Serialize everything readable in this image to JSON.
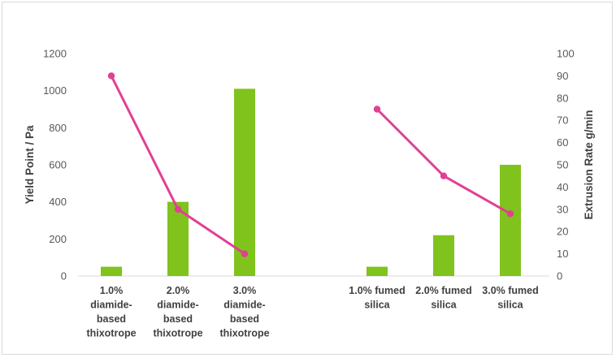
{
  "chart_data": {
    "type": "bar",
    "combo": "bar-with-line-secondary-axis",
    "categories": [
      [
        "1.0%",
        "diamide-",
        "based",
        "thixotrope"
      ],
      [
        "2.0%",
        "diamide-",
        "based",
        "thixotrope"
      ],
      [
        "3.0%",
        "diamide-",
        "based",
        "thixotrope"
      ],
      [
        "1.0% fumed",
        "silica"
      ],
      [
        "2.0% fumed",
        "silica"
      ],
      [
        "3.0% fumed",
        "silica"
      ]
    ],
    "groups": [
      [
        0,
        1,
        2
      ],
      [
        3,
        4,
        5
      ]
    ],
    "series": [
      {
        "type": "bar",
        "axis": "left",
        "values": [
          50,
          400,
          1010,
          50,
          220,
          600
        ],
        "color": "#7fc31c"
      },
      {
        "type": "line",
        "axis": "right",
        "values": [
          90,
          30,
          10,
          75,
          45,
          28
        ],
        "color": "#e23f95"
      }
    ],
    "y_left": {
      "label": "Yield Point / Pa",
      "min": 0,
      "max": 1200,
      "ticks": [
        "0",
        "200",
        "400",
        "600",
        "800",
        "1000",
        "1200"
      ]
    },
    "y_right": {
      "label": "Extrusion Rate g/min",
      "min": 0,
      "max": 100,
      "ticks": [
        "0",
        "10",
        "20",
        "30",
        "40",
        "50",
        "60",
        "70",
        "80",
        "90",
        "100"
      ]
    },
    "title": "",
    "grid": false,
    "legend": "none"
  }
}
